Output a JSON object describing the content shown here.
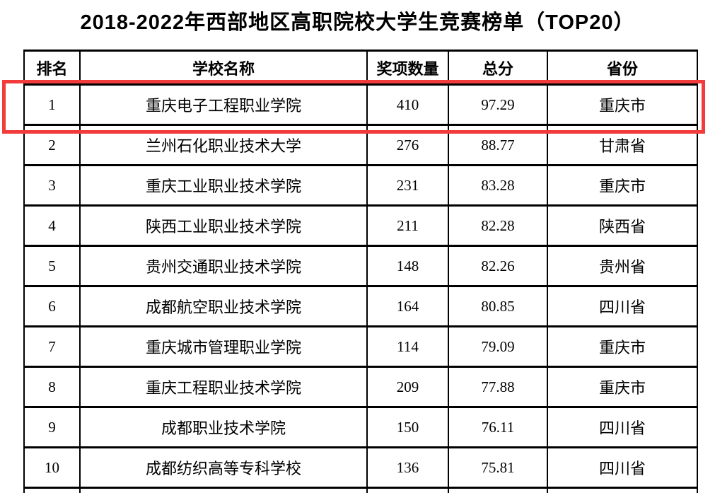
{
  "title": "2018-2022年西部地区高职院校大学生竞赛榜单（TOP20）",
  "highlight": {
    "color": "#f23b3b",
    "row_index": 0
  },
  "table": {
    "columns": [
      "排名",
      "学校名称",
      "奖项数量",
      "总分",
      "省份"
    ],
    "rows": [
      [
        "1",
        "重庆电子工程职业学院",
        "410",
        "97.29",
        "重庆市"
      ],
      [
        "2",
        "兰州石化职业技术大学",
        "276",
        "88.77",
        "甘肃省"
      ],
      [
        "3",
        "重庆工业职业技术学院",
        "231",
        "83.28",
        "重庆市"
      ],
      [
        "4",
        "陕西工业职业技术学院",
        "211",
        "82.28",
        "陕西省"
      ],
      [
        "5",
        "贵州交通职业技术学院",
        "148",
        "82.26",
        "贵州省"
      ],
      [
        "6",
        "成都航空职业技术学院",
        "164",
        "80.85",
        "四川省"
      ],
      [
        "7",
        "重庆城市管理职业学院",
        "114",
        "79.09",
        "重庆市"
      ],
      [
        "8",
        "重庆工程职业技术学院",
        "209",
        "77.88",
        "重庆市"
      ],
      [
        "9",
        "成都职业技术学院",
        "150",
        "76.11",
        "四川省"
      ],
      [
        "10",
        "成都纺织高等专科学校",
        "136",
        "75.81",
        "四川省"
      ]
    ]
  },
  "chart_data": {
    "type": "table",
    "title": "2018-2022年西部地区高职院校大学生竞赛榜单（TOP20）",
    "columns": [
      "排名",
      "学校名称",
      "奖项数量",
      "总分",
      "省份"
    ],
    "rows": [
      [
        1,
        "重庆电子工程职业学院",
        410,
        97.29,
        "重庆市"
      ],
      [
        2,
        "兰州石化职业技术大学",
        276,
        88.77,
        "甘肃省"
      ],
      [
        3,
        "重庆工业职业技术学院",
        231,
        83.28,
        "重庆市"
      ],
      [
        4,
        "陕西工业职业技术学院",
        211,
        82.28,
        "陕西省"
      ],
      [
        5,
        "贵州交通职业技术学院",
        148,
        82.26,
        "贵州省"
      ],
      [
        6,
        "成都航空职业技术学院",
        164,
        80.85,
        "四川省"
      ],
      [
        7,
        "重庆城市管理职业学院",
        114,
        79.09,
        "重庆市"
      ],
      [
        8,
        "重庆工程职业技术学院",
        209,
        77.88,
        "重庆市"
      ],
      [
        9,
        "成都职业技术学院",
        150,
        76.11,
        "四川省"
      ],
      [
        10,
        "成都纺织高等专科学校",
        136,
        75.81,
        "四川省"
      ]
    ],
    "highlighted_row": 1
  }
}
